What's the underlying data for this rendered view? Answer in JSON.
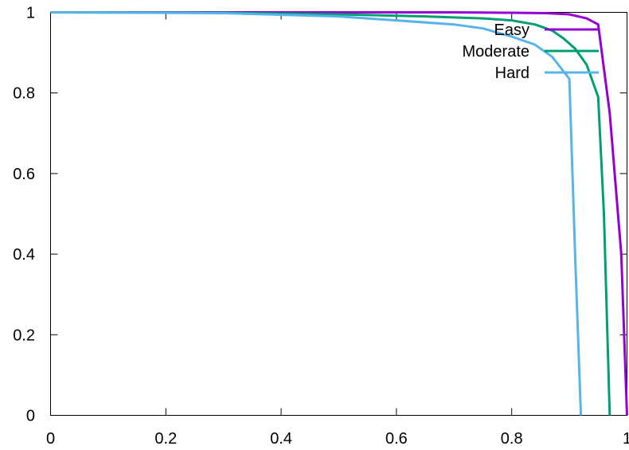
{
  "chart_data": {
    "type": "line",
    "title": "",
    "xlabel": "",
    "ylabel": "",
    "xlim": [
      0,
      1
    ],
    "ylim": [
      0,
      1
    ],
    "x_ticks": [
      0,
      0.2,
      0.4,
      0.6,
      0.8,
      1
    ],
    "y_ticks": [
      0,
      0.2,
      0.4,
      0.6,
      0.8,
      1
    ],
    "x_tick_labels": [
      "0",
      "0.2",
      "0.4",
      "0.6",
      "0.8",
      "1"
    ],
    "y_tick_labels": [
      "0",
      "0.2",
      "0.4",
      "0.6",
      "0.8",
      "1"
    ],
    "grid": false,
    "legend_position": "top-right",
    "series": [
      {
        "name": "Easy",
        "color": "#9400d3",
        "points": [
          [
            0,
            1
          ],
          [
            0.5,
            1
          ],
          [
            0.7,
            1
          ],
          [
            0.8,
            0.999
          ],
          [
            0.86,
            0.998
          ],
          [
            0.9,
            0.995
          ],
          [
            0.93,
            0.985
          ],
          [
            0.95,
            0.97
          ],
          [
            0.97,
            0.75
          ],
          [
            0.99,
            0.4
          ],
          [
            1.0,
            0
          ]
        ]
      },
      {
        "name": "Moderate",
        "color": "#009e73",
        "points": [
          [
            0,
            1
          ],
          [
            0.3,
            0.999
          ],
          [
            0.5,
            0.995
          ],
          [
            0.65,
            0.99
          ],
          [
            0.75,
            0.985
          ],
          [
            0.8,
            0.98
          ],
          [
            0.84,
            0.97
          ],
          [
            0.87,
            0.955
          ],
          [
            0.89,
            0.935
          ],
          [
            0.91,
            0.91
          ],
          [
            0.93,
            0.87
          ],
          [
            0.95,
            0.79
          ],
          [
            0.96,
            0.5
          ],
          [
            0.97,
            0
          ]
        ]
      },
      {
        "name": "Hard",
        "color": "#56b4e9",
        "points": [
          [
            0,
            1
          ],
          [
            0.3,
            0.998
          ],
          [
            0.5,
            0.99
          ],
          [
            0.6,
            0.98
          ],
          [
            0.7,
            0.97
          ],
          [
            0.75,
            0.96
          ],
          [
            0.8,
            0.94
          ],
          [
            0.84,
            0.92
          ],
          [
            0.87,
            0.89
          ],
          [
            0.9,
            0.835
          ],
          [
            0.91,
            0.4
          ],
          [
            0.92,
            0
          ]
        ]
      }
    ]
  }
}
